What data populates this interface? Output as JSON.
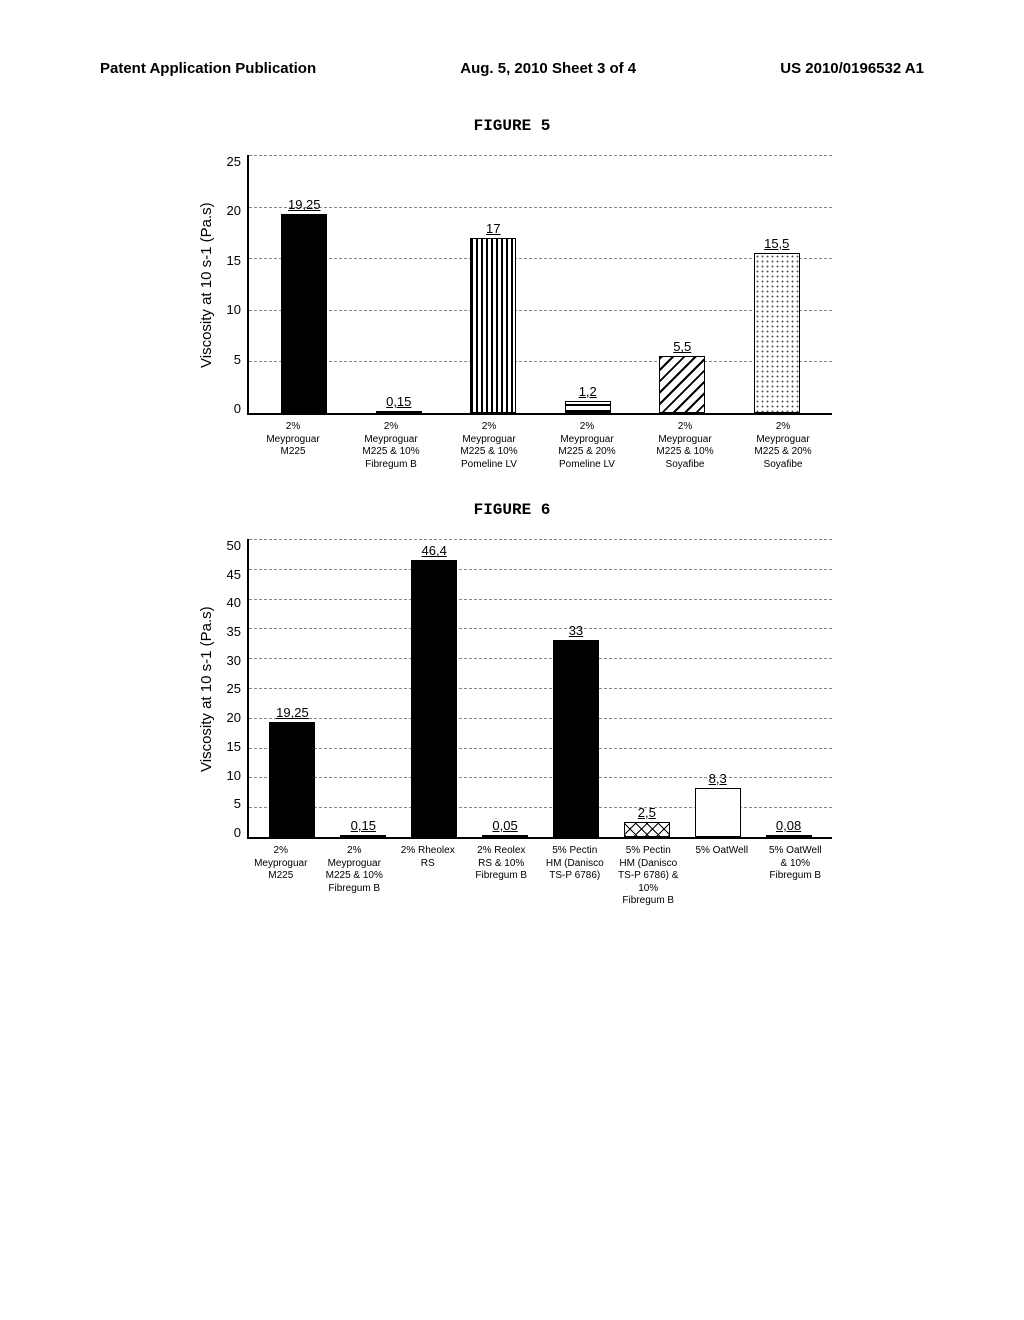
{
  "header": {
    "left": "Patent Application Publication",
    "center": "Aug. 5, 2010  Sheet 3 of 4",
    "right": "US 2010/0196532 A1"
  },
  "figure5": {
    "title": "FIGURE 5",
    "ylabel": "Viscosity at 10 s-1 (Pa.s)",
    "ymax": 25,
    "ytick_step": 5,
    "yticks": [
      "25",
      "20",
      "15",
      "10",
      "5",
      "0"
    ],
    "bars": [
      {
        "label": "2%\nMeyproguar\nM225",
        "value": 19.25,
        "text": "19,25",
        "fill": "fill-solid"
      },
      {
        "label": "2%\nMeyproguar\nM225 & 10%\nFibregum B",
        "value": 0.15,
        "text": "0,15",
        "fill": "fill-white"
      },
      {
        "label": "2%\nMeyproguar\nM225 & 10%\nPomeline LV",
        "value": 17,
        "text": "17",
        "fill": "fill-vstripe"
      },
      {
        "label": "2%\nMeyproguar\nM225 & 20%\nPomeline LV",
        "value": 1.2,
        "text": "1,2",
        "fill": "fill-hstripe"
      },
      {
        "label": "2%\nMeyproguar\nM225 & 10%\nSoyafibe",
        "value": 5.5,
        "text": "5,5",
        "fill": "fill-diag"
      },
      {
        "label": "2%\nMeyproguar\nM225 & 20%\nSoyafibe",
        "value": 15.5,
        "text": "15,5",
        "fill": "fill-dots"
      }
    ]
  },
  "figure6": {
    "title": "FIGURE 6",
    "ylabel": "Viscosity at 10 s-1 (Pa.s)",
    "ymax": 50,
    "ytick_step": 5,
    "yticks": [
      "50",
      "45",
      "40",
      "35",
      "30",
      "25",
      "20",
      "15",
      "10",
      "5",
      "0"
    ],
    "bars": [
      {
        "label": "2%\nMeyproguar\nM225",
        "value": 19.25,
        "text": "19,25",
        "fill": "fill-solid"
      },
      {
        "label": "2%\nMeyproguar\nM225 & 10%\nFibregum B",
        "value": 0.15,
        "text": "0,15",
        "fill": "fill-white"
      },
      {
        "label": "2% Rheolex\nRS",
        "value": 46.4,
        "text": "46,4",
        "fill": "fill-solid"
      },
      {
        "label": "2% Reolex\nRS & 10%\nFibregum B",
        "value": 0.05,
        "text": "0,05",
        "fill": "fill-white"
      },
      {
        "label": "5% Pectin\nHM (Danisco\nTS-P 6786)",
        "value": 33,
        "text": "33",
        "fill": "fill-solid"
      },
      {
        "label": "5% Pectin\nHM (Danisco\nTS-P 6786) &\n10%\nFibregum B",
        "value": 2.5,
        "text": "2,5",
        "fill": "fill-cross"
      },
      {
        "label": "5% OatWell",
        "value": 8.3,
        "text": "8,3",
        "fill": "fill-white"
      },
      {
        "label": "5% OatWell\n& 10%\nFibregum B",
        "value": 0.08,
        "text": "0,08",
        "fill": "fill-white"
      }
    ]
  }
}
